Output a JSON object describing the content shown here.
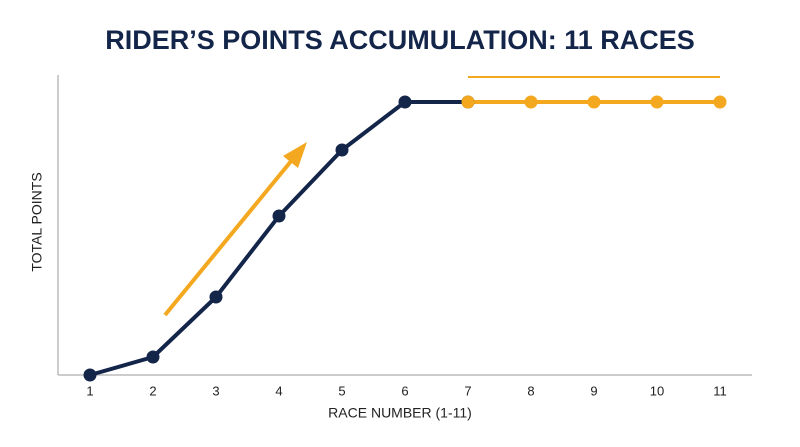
{
  "chart_data": {
    "type": "line",
    "title": "RIDER’S POINTS ACCUMULATION: 11 RACES",
    "x_label": "RACE NUMBER (1-11)",
    "y_label": "TOTAL POINTS",
    "categories": [
      "1",
      "2",
      "3",
      "4",
      "5",
      "6",
      "7",
      "8",
      "9",
      "10",
      "11"
    ],
    "series": [
      {
        "color": "#14254a",
        "values": [
          0,
          6,
          26,
          53,
          75,
          91,
          91,
          null,
          null,
          null,
          null
        ]
      },
      {
        "color": "#f3a81f",
        "values": [
          null,
          null,
          null,
          null,
          null,
          null,
          91,
          91,
          91,
          91,
          91
        ]
      }
    ],
    "ylim": [
      0,
      100
    ]
  }
}
